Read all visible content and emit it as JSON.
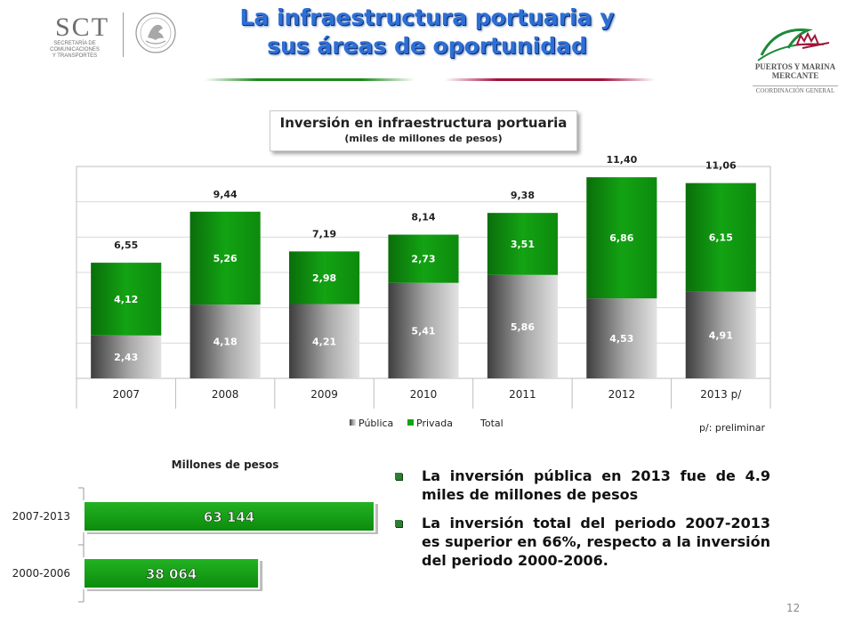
{
  "header": {
    "title_line1": "La infraestructura portuaria y",
    "title_line2": "sus áreas de oportunidad",
    "left_logo_text": "SCT",
    "left_logo_sub1": "SECRETARÍA DE COMUNICACIONES",
    "left_logo_sub2": "Y TRANSPORTES",
    "left_logo_icon": "eagle-seal-icon",
    "right_logo_line1": "PUERTOS Y MARINA",
    "right_logo_line2": "MERCANTE",
    "right_logo_line3": "COORDINACIÓN GENERAL",
    "right_logo_icon": "ship-crown-icon"
  },
  "colors": {
    "title_blue": "#2e6fd6",
    "green_dark": "#0a6e0a",
    "green_bright": "#13a313",
    "gray_dark": "#4a4a4a",
    "gray_light": "#cfcfcf"
  },
  "chart_data": [
    {
      "type": "bar",
      "stacked": true,
      "title": "Inversión en infraestructura portuaria",
      "subtitle": "(miles de millones de pesos)",
      "categories": [
        "2007",
        "2008",
        "2009",
        "2010",
        "2011",
        "2012",
        "2013 p/"
      ],
      "series": [
        {
          "name": "Pública",
          "values": [
            2.43,
            4.18,
            4.21,
            5.41,
            5.86,
            4.53,
            4.91
          ],
          "labels": [
            "2,43",
            "4,18",
            "4,21",
            "5,41",
            "5,86",
            "4,53",
            "4,91"
          ]
        },
        {
          "name": "Privada",
          "values": [
            4.12,
            5.26,
            2.98,
            2.73,
            3.51,
            6.86,
            6.15
          ],
          "labels": [
            "4,12",
            "5,26",
            "2,98",
            "2,73",
            "3,51",
            "6,86",
            "6,15"
          ]
        },
        {
          "name": "Total",
          "values": [
            6.55,
            9.44,
            7.19,
            8.14,
            9.38,
            11.4,
            11.06
          ],
          "labels": [
            "6,55",
            "9,44",
            "7,19",
            "8,14",
            "9,38",
            "11,40",
            "11,06"
          ]
        }
      ],
      "ylim": [
        0,
        12
      ],
      "grid": true,
      "legend": "bottom",
      "note": "p/: preliminar"
    },
    {
      "type": "bar",
      "orientation": "horizontal",
      "title": "Millones de pesos",
      "categories": [
        "2007-2013",
        "2000-2006"
      ],
      "values": [
        63144,
        38064
      ],
      "labels": [
        "63 144",
        "38 064"
      ],
      "xlim": [
        0,
        66000
      ]
    }
  ],
  "bullets": [
    "La inversión pública en 2013 fue de 4.9 miles de millones de pesos",
    "La inversión total del periodo 2007-2013 es superior en 66%, respecto a la inversión del periodo 2000-2006."
  ],
  "page_number": "12"
}
